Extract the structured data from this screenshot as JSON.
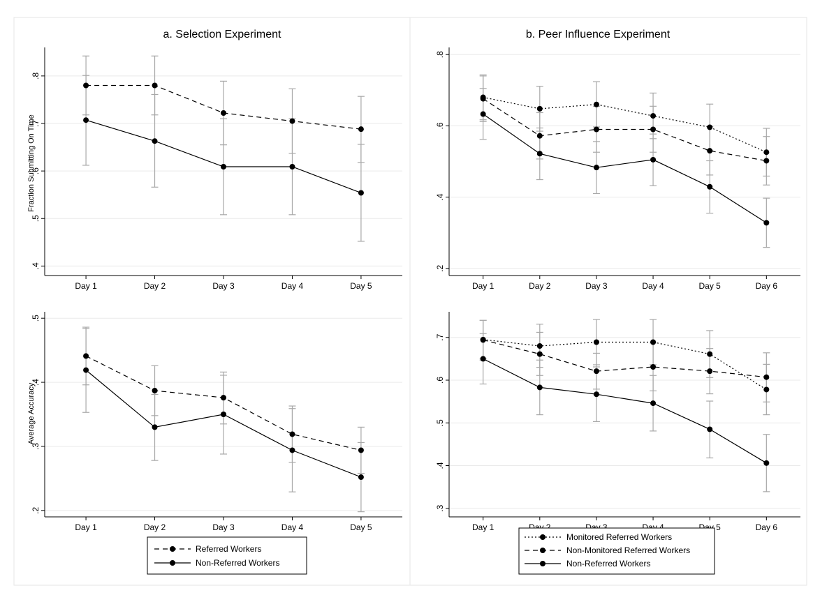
{
  "chart_data": [
    {
      "id": "sel_top",
      "type": "line",
      "title": "a. Selection Experiment",
      "ylabel": "Fraction Submitting On Time",
      "xlabel": "",
      "categories": [
        "Day 1",
        "Day 2",
        "Day 3",
        "Day 4",
        "Day 5"
      ],
      "ylim": [
        0.38,
        0.86
      ],
      "yticks": [
        0.4,
        0.5,
        0.6,
        0.7,
        0.8
      ],
      "ytick_labels": [
        ".4",
        ".5",
        ".6",
        ".7",
        ".8"
      ],
      "grid": true,
      "series": [
        {
          "name": "Referred Workers",
          "style": "dashed",
          "values": [
            0.78,
            0.78,
            0.722,
            0.705,
            0.688
          ],
          "ci_low": [
            0.718,
            0.718,
            0.655,
            0.637,
            0.618
          ],
          "ci_high": [
            0.842,
            0.842,
            0.789,
            0.773,
            0.757
          ]
        },
        {
          "name": "Non-Referred Workers",
          "style": "solid",
          "values": [
            0.707,
            0.663,
            0.609,
            0.609,
            0.554
          ],
          "ci_low": [
            0.612,
            0.566,
            0.508,
            0.508,
            0.452
          ],
          "ci_high": [
            0.801,
            0.761,
            0.71,
            0.71,
            0.656
          ]
        }
      ]
    },
    {
      "id": "peer_top",
      "type": "line",
      "title": "b. Peer Influence Experiment",
      "ylabel": "",
      "xlabel": "",
      "categories": [
        "Day 1",
        "Day 2",
        "Day 3",
        "Day 4",
        "Day 5",
        "Day 6"
      ],
      "ylim": [
        0.18,
        0.82
      ],
      "yticks": [
        0.2,
        0.4,
        0.6,
        0.8
      ],
      "ytick_labels": [
        ".2",
        ".4",
        ".6",
        ".8"
      ],
      "grid": true,
      "series": [
        {
          "name": "Monitored Referred Workers",
          "style": "dotted",
          "values": [
            0.68,
            0.648,
            0.66,
            0.628,
            0.596,
            0.526
          ],
          "ci_low": [
            0.617,
            0.585,
            0.597,
            0.564,
            0.531,
            0.459
          ],
          "ci_high": [
            0.743,
            0.711,
            0.724,
            0.692,
            0.661,
            0.593
          ]
        },
        {
          "name": "Non-Monitored Referred Workers",
          "style": "dashed",
          "values": [
            0.676,
            0.572,
            0.59,
            0.59,
            0.53,
            0.502
          ],
          "ci_low": [
            0.612,
            0.507,
            0.526,
            0.526,
            0.462,
            0.434
          ],
          "ci_high": [
            0.74,
            0.637,
            0.655,
            0.655,
            0.598,
            0.57
          ]
        },
        {
          "name": "Non-Referred Workers",
          "style": "solid",
          "values": [
            0.633,
            0.522,
            0.483,
            0.505,
            0.429,
            0.328
          ],
          "ci_low": [
            0.562,
            0.449,
            0.41,
            0.432,
            0.355,
            0.259
          ],
          "ci_high": [
            0.705,
            0.594,
            0.556,
            0.577,
            0.502,
            0.397
          ]
        }
      ]
    },
    {
      "id": "sel_bottom",
      "type": "line",
      "title": "",
      "ylabel": "Average Accuracy",
      "xlabel": "",
      "categories": [
        "Day 1",
        "Day 2",
        "Day 3",
        "Day 4",
        "Day 5"
      ],
      "ylim": [
        0.19,
        0.51
      ],
      "yticks": [
        0.2,
        0.3,
        0.4,
        0.5
      ],
      "ytick_labels": [
        ".2",
        ".3",
        ".4",
        ".5"
      ],
      "grid": true,
      "series": [
        {
          "name": "Referred Workers",
          "style": "dashed",
          "values": [
            0.441,
            0.387,
            0.376,
            0.319,
            0.294
          ],
          "ci_low": [
            0.396,
            0.348,
            0.335,
            0.275,
            0.258
          ],
          "ci_high": [
            0.486,
            0.426,
            0.416,
            0.363,
            0.33
          ]
        },
        {
          "name": "Non-Referred Workers",
          "style": "solid",
          "values": [
            0.419,
            0.33,
            0.35,
            0.294,
            0.252
          ],
          "ci_low": [
            0.353,
            0.278,
            0.288,
            0.229,
            0.198
          ],
          "ci_high": [
            0.484,
            0.381,
            0.411,
            0.359,
            0.306
          ]
        }
      ]
    },
    {
      "id": "peer_bottom",
      "type": "line",
      "title": "",
      "ylabel": "",
      "xlabel": "",
      "categories": [
        "Day 1",
        "Day 2",
        "Day 3",
        "Day 4",
        "Day 5",
        "Day 6"
      ],
      "ylim": [
        0.28,
        0.76
      ],
      "yticks": [
        0.3,
        0.4,
        0.5,
        0.6,
        0.7
      ],
      "ytick_labels": [
        ".3",
        ".4",
        ".5",
        ".6",
        ".7"
      ],
      "grid": true,
      "series": [
        {
          "name": "Monitored Referred Workers",
          "style": "dotted",
          "values": [
            0.695,
            0.68,
            0.689,
            0.689,
            0.661,
            0.578
          ],
          "ci_low": [
            0.65,
            0.63,
            0.636,
            0.636,
            0.606,
            0.519
          ],
          "ci_high": [
            0.74,
            0.731,
            0.742,
            0.742,
            0.716,
            0.637
          ]
        },
        {
          "name": "Non-Monitored Referred Workers",
          "style": "dashed",
          "values": [
            0.694,
            0.661,
            0.621,
            0.631,
            0.621,
            0.607
          ],
          "ci_low": [
            0.647,
            0.611,
            0.579,
            0.575,
            0.568,
            0.549
          ],
          "ci_high": [
            0.74,
            0.712,
            0.663,
            0.687,
            0.674,
            0.664
          ]
        },
        {
          "name": "Non-Referred Workers",
          "style": "solid",
          "values": [
            0.65,
            0.583,
            0.567,
            0.546,
            0.485,
            0.406
          ],
          "ci_low": [
            0.591,
            0.519,
            0.503,
            0.481,
            0.418,
            0.339
          ],
          "ci_high": [
            0.709,
            0.647,
            0.631,
            0.611,
            0.551,
            0.473
          ]
        }
      ]
    }
  ],
  "legends": {
    "selection": [
      "Referred Workers",
      "Non-Referred Workers"
    ],
    "peer": [
      "Monitored Referred Workers",
      "Non-Monitored Referred Workers",
      "Non-Referred Workers"
    ]
  },
  "colors": {
    "line": "#000000",
    "ci": "#a8a8a8",
    "grid": "#eaeaea",
    "border": "#e6e6e6"
  }
}
